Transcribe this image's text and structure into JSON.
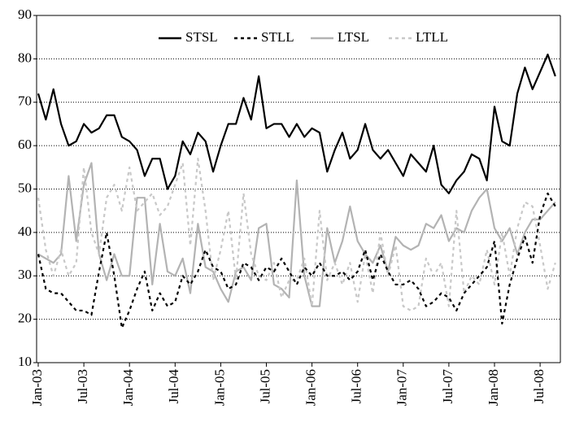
{
  "chart_data": {
    "type": "line",
    "categories": [
      "Jan-03",
      null,
      null,
      null,
      null,
      null,
      "Jul-03",
      null,
      null,
      null,
      null,
      null,
      "Jan-04",
      null,
      null,
      null,
      null,
      null,
      "Jul-04",
      null,
      null,
      null,
      null,
      null,
      "Jan-05",
      null,
      null,
      null,
      null,
      null,
      "Jul-05",
      null,
      null,
      null,
      null,
      null,
      "Jan-06",
      null,
      null,
      null,
      null,
      null,
      "Jul-06",
      null,
      null,
      null,
      null,
      null,
      "Jan-07",
      null,
      null,
      null,
      null,
      null,
      "Jul-07",
      null,
      null,
      null,
      null,
      null,
      "Jan-08",
      null,
      null,
      null,
      null,
      null,
      "Jul-08",
      null,
      null
    ],
    "series": [
      {
        "name": "STSL",
        "color": "#000000",
        "style": "solid",
        "values": [
          72,
          66,
          73,
          65,
          60,
          61,
          65,
          63,
          64,
          67,
          67,
          62,
          61,
          59,
          53,
          57,
          57,
          50,
          53,
          61,
          58,
          63,
          61,
          54,
          60,
          65,
          65,
          71,
          66,
          76,
          64,
          65,
          65,
          62,
          65,
          62,
          64,
          63,
          54,
          59,
          63,
          57,
          59,
          65,
          59,
          57,
          59,
          56,
          53,
          58,
          56,
          54,
          60,
          51,
          49,
          52,
          54,
          58,
          57,
          52,
          69,
          61,
          60,
          72,
          78,
          73,
          77,
          81,
          76
        ]
      },
      {
        "name": "STLL",
        "color": "#000000",
        "style": "dashed",
        "values": [
          35,
          27,
          26,
          26,
          24,
          22,
          22,
          21,
          31,
          40,
          30,
          18,
          22,
          27,
          31,
          22,
          26,
          23,
          24,
          30,
          28,
          31,
          36,
          32,
          31,
          27,
          28,
          33,
          32,
          29,
          32,
          31,
          34,
          31,
          28,
          32,
          30,
          33,
          30,
          30,
          31,
          29,
          31,
          36,
          29,
          35,
          31,
          28,
          28,
          29,
          27,
          23,
          24,
          26,
          25,
          22,
          26,
          28,
          30,
          32,
          38,
          19,
          28,
          34,
          39,
          33,
          44,
          49,
          46
        ]
      },
      {
        "name": "LTSL",
        "color": "#b3b3b3",
        "style": "solid",
        "values": [
          35,
          34,
          33,
          35,
          53,
          38,
          51,
          56,
          35,
          29,
          35,
          30,
          30,
          48,
          48,
          28,
          42,
          31,
          30,
          34,
          26,
          42,
          32,
          31,
          27,
          24,
          31,
          32,
          29,
          41,
          42,
          28,
          27,
          25,
          52,
          30,
          23,
          23,
          41,
          33,
          38,
          46,
          38,
          35,
          33,
          37,
          31,
          39,
          37,
          36,
          37,
          42,
          41,
          44,
          38,
          41,
          40,
          45,
          48,
          50,
          41,
          38,
          41,
          35,
          40,
          43,
          43,
          45,
          47
        ]
      },
      {
        "name": "LTLL",
        "color": "#c8c8c8",
        "style": "dashed",
        "values": [
          48,
          36,
          30,
          36,
          30,
          33,
          55,
          40,
          35,
          48,
          51,
          45,
          55,
          45,
          47,
          49,
          44,
          46,
          51,
          56,
          37,
          57,
          45,
          29,
          36,
          45,
          29,
          49,
          35,
          30,
          29,
          33,
          25,
          29,
          29,
          34,
          23,
          45,
          29,
          33,
          28,
          33,
          24,
          35,
          26,
          40,
          30,
          37,
          23,
          22,
          23,
          34,
          30,
          33,
          23,
          45,
          26,
          30,
          28,
          36,
          28,
          40,
          30,
          41,
          47,
          46,
          37,
          27,
          33
        ]
      }
    ],
    "ylim": [
      10,
      90
    ],
    "yticks": [
      10,
      20,
      30,
      40,
      50,
      60,
      70,
      80,
      90
    ],
    "grid": true,
    "legend": "top"
  }
}
